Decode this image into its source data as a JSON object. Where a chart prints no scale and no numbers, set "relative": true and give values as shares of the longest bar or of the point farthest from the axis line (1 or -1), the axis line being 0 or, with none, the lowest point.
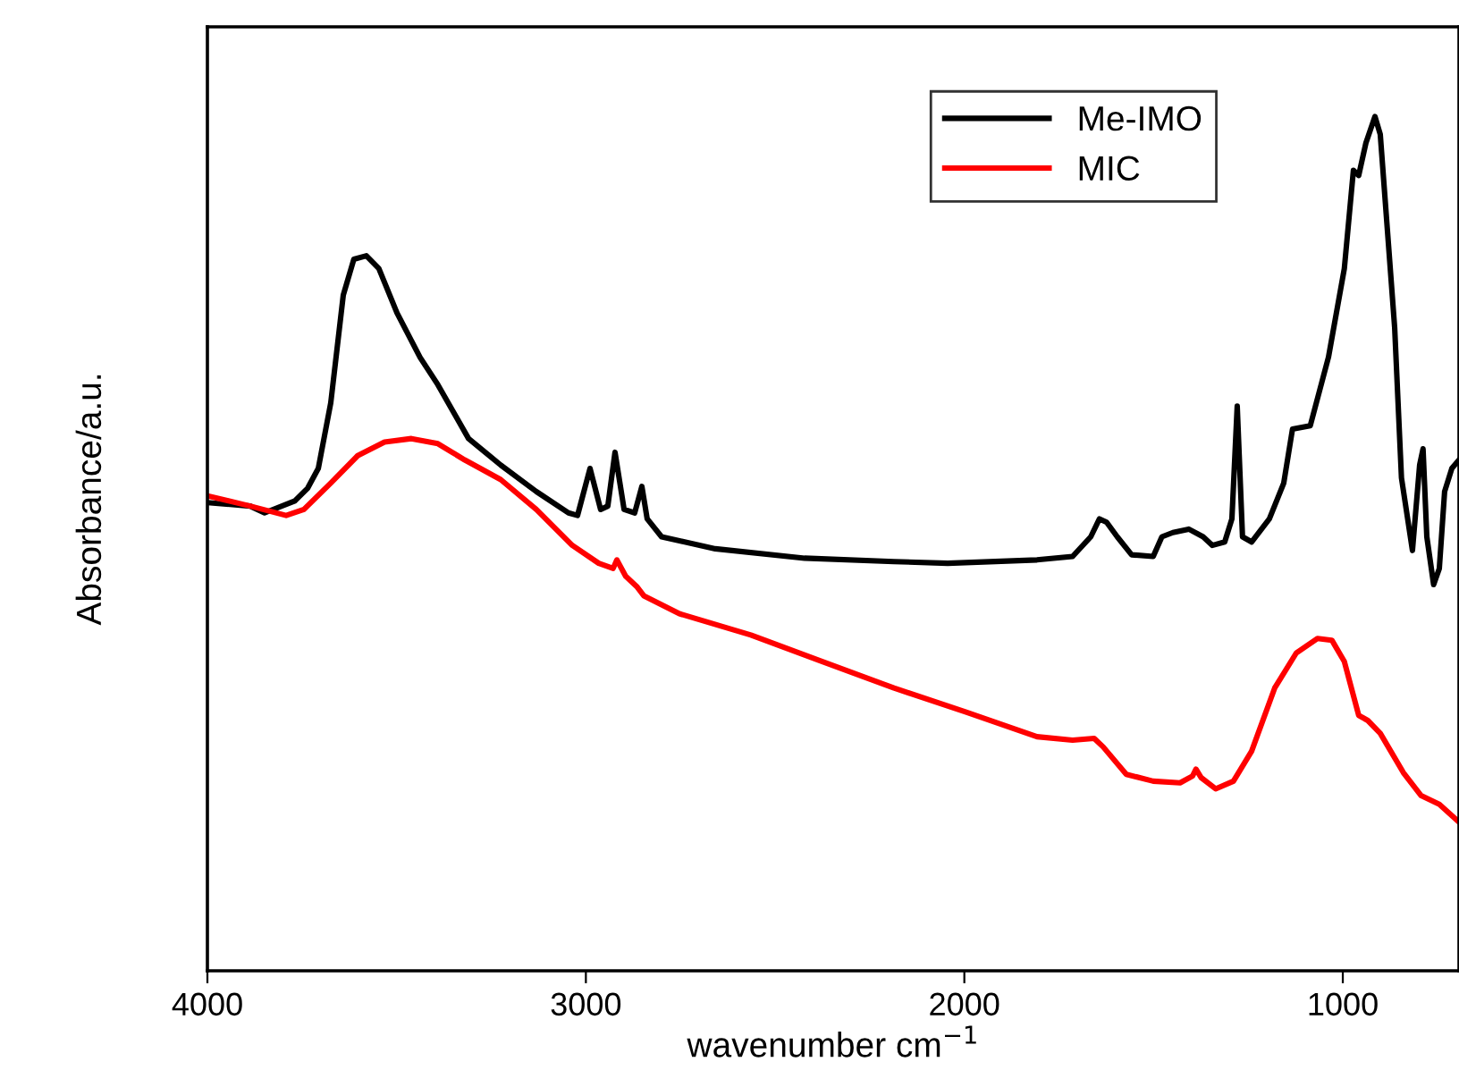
{
  "chart_data": {
    "type": "line",
    "relative": true,
    "xlabel": "wavenumber cm$^{−1}$",
    "ylabel": "Absorbance/a.u.",
    "xlim": [
      4000,
      693
    ],
    "xticks": [
      4000,
      3000,
      2000,
      1000
    ],
    "legend": "top right",
    "grid": false,
    "line_style": "solid",
    "marker": "none",
    "series": [
      {
        "name": "Me-IMO",
        "color": "#000000",
        "x": [
          4000,
          3887,
          3849,
          3769,
          3735,
          3707,
          3674,
          3641,
          3613,
          3580,
          3547,
          3499,
          3438,
          3391,
          3310,
          3225,
          3131,
          3046,
          3022,
          2989,
          2961,
          2942,
          2923,
          2899,
          2871,
          2852,
          2838,
          2800,
          2658,
          2422,
          2186,
          2044,
          1808,
          1714,
          1666,
          1643,
          1624,
          1596,
          1558,
          1501,
          1478,
          1449,
          1407,
          1369,
          1345,
          1312,
          1293,
          1279,
          1265,
          1241,
          1194,
          1156,
          1133,
          1086,
          1038,
          996,
          972,
          958,
          939,
          915,
          901,
          863,
          845,
          816,
          797,
          788,
          778,
          760,
          745,
          731,
          712,
          693
        ],
        "values": [
          0.548,
          0.544,
          0.536,
          0.55,
          0.565,
          0.588,
          0.665,
          0.791,
          0.833,
          0.837,
          0.822,
          0.77,
          0.718,
          0.686,
          0.623,
          0.592,
          0.561,
          0.536,
          0.533,
          0.588,
          0.54,
          0.544,
          0.607,
          0.54,
          0.536,
          0.567,
          0.529,
          0.508,
          0.494,
          0.483,
          0.479,
          0.477,
          0.481,
          0.485,
          0.508,
          0.529,
          0.525,
          0.508,
          0.487,
          0.485,
          0.508,
          0.513,
          0.517,
          0.508,
          0.498,
          0.502,
          0.529,
          0.661,
          0.508,
          0.502,
          0.529,
          0.571,
          0.634,
          0.638,
          0.718,
          0.822,
          0.937,
          0.931,
          0.969,
          1,
          0.979,
          0.753,
          0.577,
          0.492,
          0.592,
          0.611,
          0.508,
          0.452,
          0.471,
          0.561,
          0.588,
          0.598
        ]
      },
      {
        "name": "MIC",
        "color": "#ff0000",
        "x": [
          4000,
          3887,
          3792,
          3745,
          3674,
          3603,
          3532,
          3461,
          3391,
          3320,
          3225,
          3131,
          3036,
          2966,
          2928,
          2918,
          2895,
          2866,
          2847,
          2753,
          2564,
          2375,
          2186,
          1997,
          1808,
          1714,
          1657,
          1633,
          1572,
          1501,
          1430,
          1397,
          1388,
          1374,
          1336,
          1289,
          1241,
          1180,
          1123,
          1067,
          1029,
          996,
          958,
          934,
          901,
          840,
          793,
          745,
          693
        ],
        "values": [
          0.556,
          0.544,
          0.533,
          0.54,
          0.571,
          0.603,
          0.619,
          0.623,
          0.617,
          0.598,
          0.575,
          0.54,
          0.498,
          0.477,
          0.471,
          0.481,
          0.462,
          0.45,
          0.439,
          0.418,
          0.393,
          0.362,
          0.331,
          0.303,
          0.274,
          0.27,
          0.272,
          0.262,
          0.23,
          0.222,
          0.22,
          0.228,
          0.236,
          0.226,
          0.213,
          0.222,
          0.257,
          0.331,
          0.372,
          0.389,
          0.387,
          0.362,
          0.299,
          0.293,
          0.278,
          0.232,
          0.205,
          0.195,
          0.174
        ]
      }
    ]
  }
}
